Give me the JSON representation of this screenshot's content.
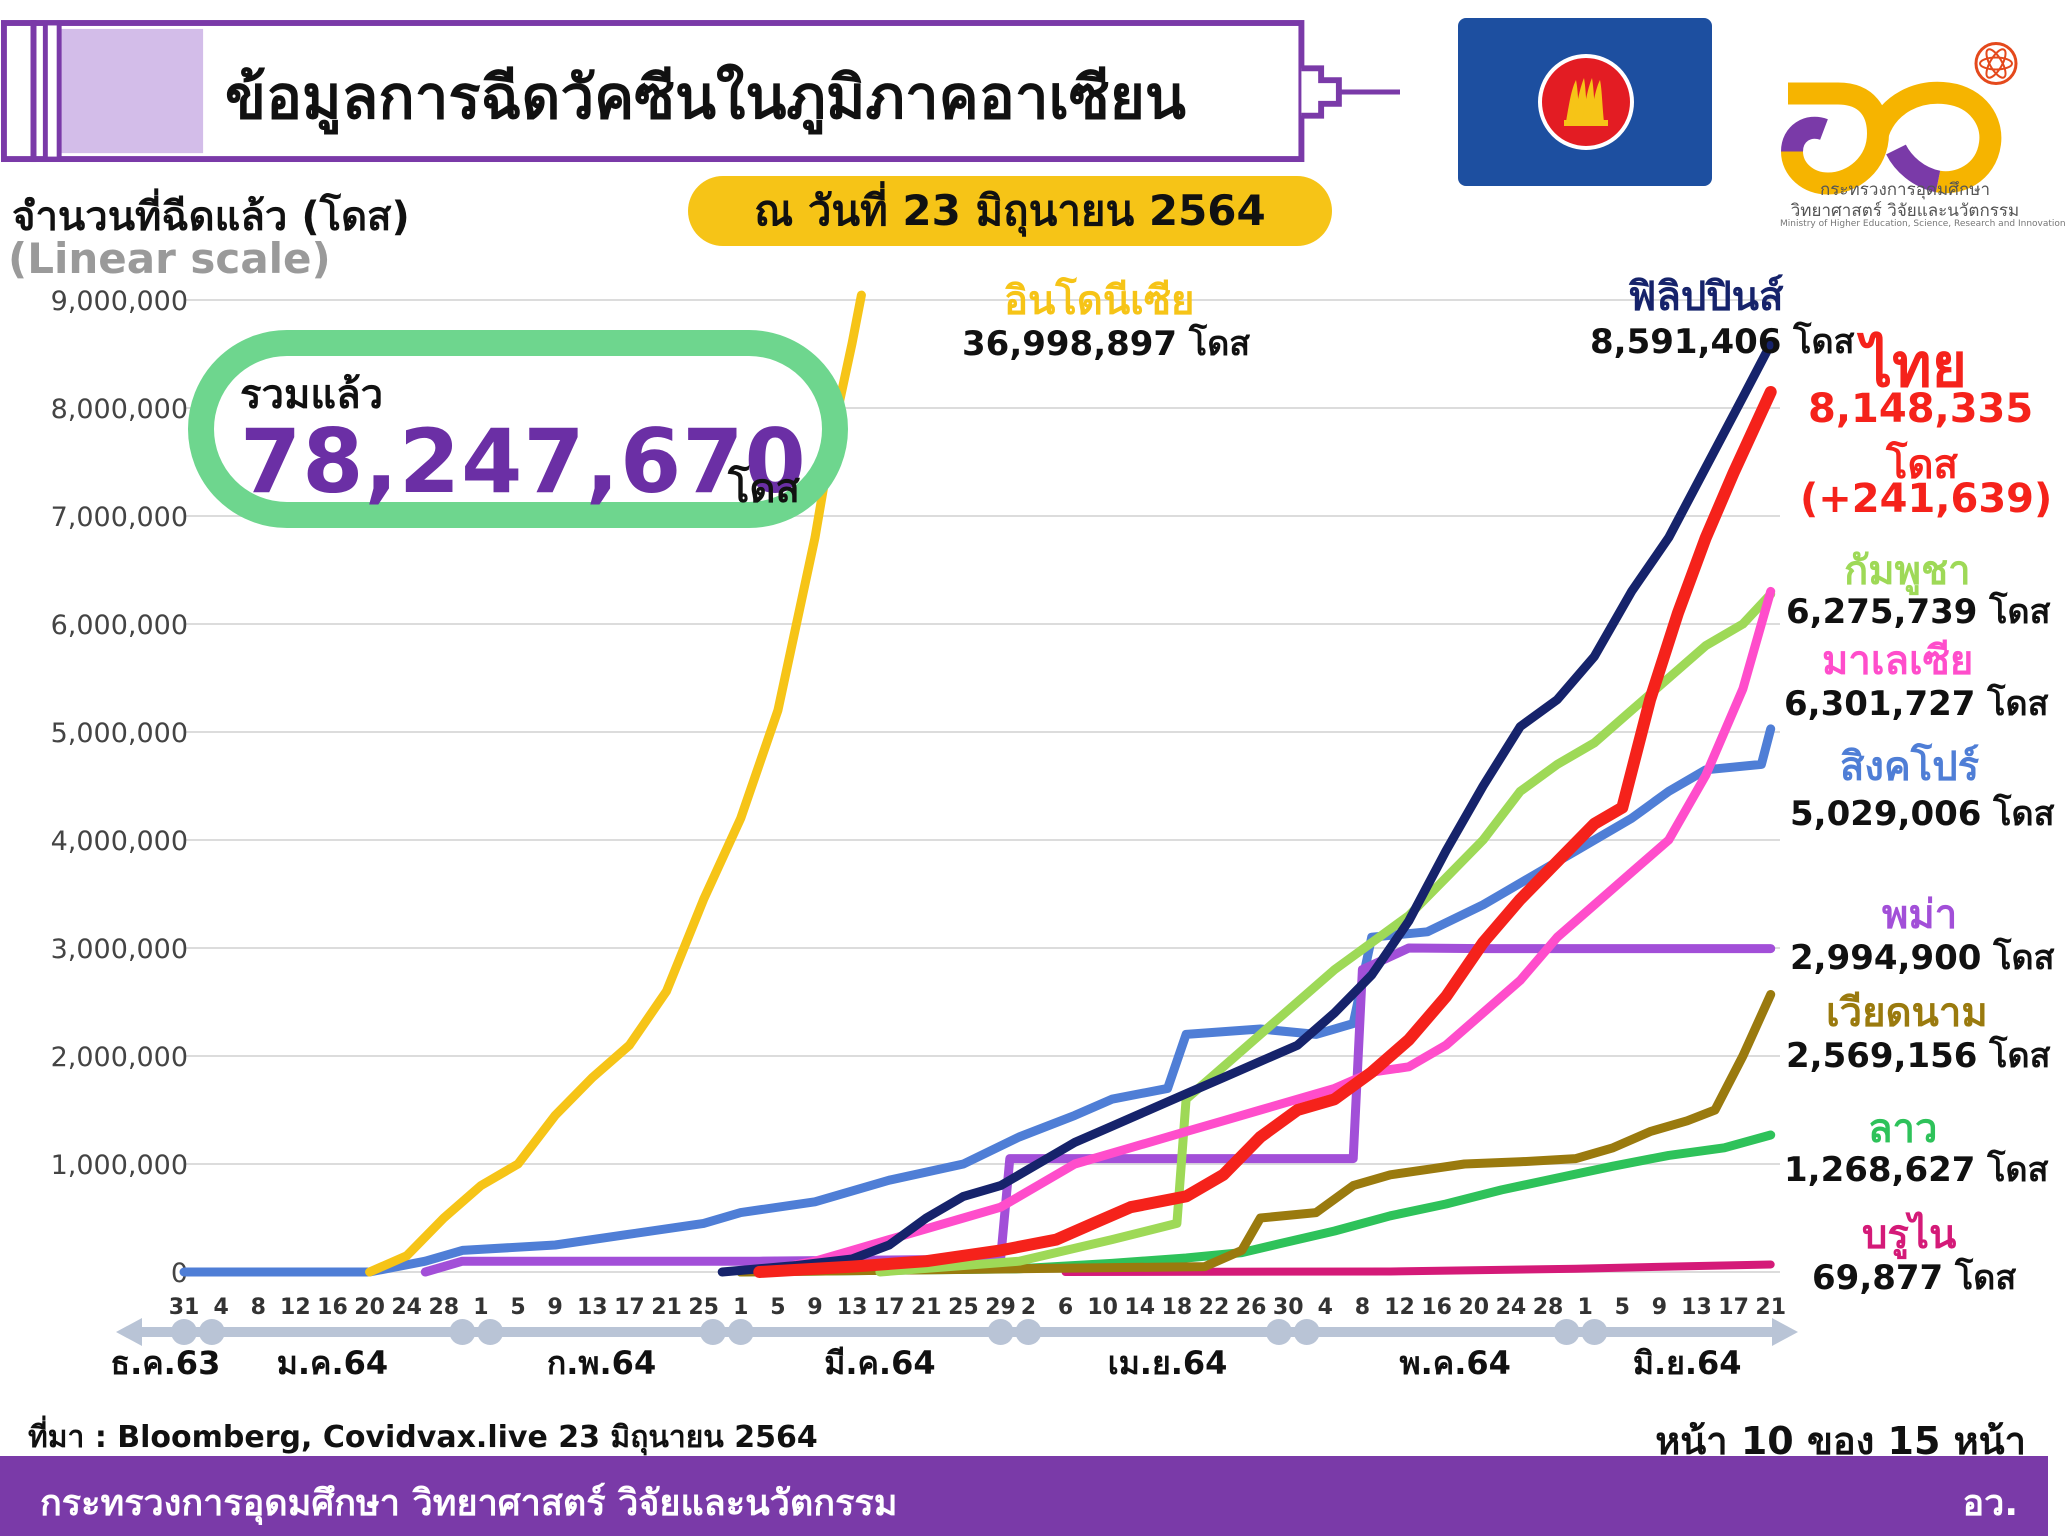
{
  "header": {
    "title": "ข้อมูลการฉีดวัคซีนในภูมิภาคอาเซียน",
    "date": "ณ วันที่ 23 มิถุนายน 2564",
    "ministry_th_1": "กระทรวงการอุดมศึกษา",
    "ministry_th_2": "วิทยาศาสตร์ วิจัยและนวัตกรรม",
    "ministry_en": "Ministry of Higher Education, Science, Research and Innovation"
  },
  "axis": {
    "ylabel": "จำนวนที่ฉีดแล้ว (โดส)",
    "scale_note": "(Linear scale)"
  },
  "total": {
    "label": "รวมแล้ว",
    "value": "78,247,670",
    "unit": "โดส"
  },
  "chart_data": {
    "type": "line",
    "ylim": [
      0,
      9000000
    ],
    "yticks": [
      "0",
      "1,000,000",
      "2,000,000",
      "3,000,000",
      "4,000,000",
      "5,000,000",
      "6,000,000",
      "7,000,000",
      "8,000,000",
      "9,000,000"
    ],
    "x_range_days": [
      0,
      172
    ],
    "x_ticks": [
      {
        "d": 0,
        "label": "31"
      },
      {
        "d": 4,
        "label": "4"
      },
      {
        "d": 8,
        "label": "8"
      },
      {
        "d": 12,
        "label": "12"
      },
      {
        "d": 16,
        "label": "16"
      },
      {
        "d": 20,
        "label": "20"
      },
      {
        "d": 24,
        "label": "24"
      },
      {
        "d": 28,
        "label": "28"
      },
      {
        "d": 32,
        "label": "1"
      },
      {
        "d": 36,
        "label": "5"
      },
      {
        "d": 40,
        "label": "9"
      },
      {
        "d": 44,
        "label": "13"
      },
      {
        "d": 48,
        "label": "17"
      },
      {
        "d": 52,
        "label": "21"
      },
      {
        "d": 56,
        "label": "25"
      },
      {
        "d": 60,
        "label": "1"
      },
      {
        "d": 64,
        "label": "5"
      },
      {
        "d": 68,
        "label": "9"
      },
      {
        "d": 72,
        "label": "13"
      },
      {
        "d": 76,
        "label": "17"
      },
      {
        "d": 80,
        "label": "21"
      },
      {
        "d": 84,
        "label": "25"
      },
      {
        "d": 88,
        "label": "29"
      },
      {
        "d": 91,
        "label": "2"
      },
      {
        "d": 95,
        "label": "6"
      },
      {
        "d": 99,
        "label": "10"
      },
      {
        "d": 103,
        "label": "14"
      },
      {
        "d": 107,
        "label": "18"
      },
      {
        "d": 111,
        "label": "22"
      },
      {
        "d": 115,
        "label": "26"
      },
      {
        "d": 119,
        "label": "30"
      },
      {
        "d": 123,
        "label": "4"
      },
      {
        "d": 127,
        "label": "8"
      },
      {
        "d": 131,
        "label": "12"
      },
      {
        "d": 135,
        "label": "16"
      },
      {
        "d": 139,
        "label": "20"
      },
      {
        "d": 143,
        "label": "24"
      },
      {
        "d": 147,
        "label": "28"
      },
      {
        "d": 151,
        "label": "1"
      },
      {
        "d": 155,
        "label": "5"
      },
      {
        "d": 159,
        "label": "9"
      },
      {
        "d": 163,
        "label": "13"
      },
      {
        "d": 167,
        "label": "17"
      },
      {
        "d": 171,
        "label": "21"
      }
    ],
    "months": [
      {
        "label": "ธ.ค.63",
        "d": -2
      },
      {
        "label": "ม.ค.64",
        "d": 16
      },
      {
        "label": "ก.พ.64",
        "d": 45
      },
      {
        "label": "มี.ค.64",
        "d": 75
      },
      {
        "label": "เม.ย.64",
        "d": 106
      },
      {
        "label": "พ.ค.64",
        "d": 137
      },
      {
        "label": "มิ.ย.64",
        "d": 162
      }
    ],
    "month_markers": [
      0,
      3,
      30,
      33,
      57,
      60,
      88,
      91,
      118,
      121,
      149,
      152
    ],
    "series": [
      {
        "name": "อินโดนีเซีย",
        "value": "36,998,897 โดส",
        "color": "#f6c417",
        "width": 9,
        "points": [
          [
            20,
            0
          ],
          [
            24,
            150000
          ],
          [
            28,
            500000
          ],
          [
            32,
            800000
          ],
          [
            36,
            1000000
          ],
          [
            40,
            1450000
          ],
          [
            44,
            1800000
          ],
          [
            48,
            2100000
          ],
          [
            52,
            2600000
          ],
          [
            56,
            3450000
          ],
          [
            60,
            4200000
          ],
          [
            64,
            5200000
          ],
          [
            68,
            6800000
          ],
          [
            70,
            7800000
          ],
          [
            72,
            8600000
          ],
          [
            73,
            9050000
          ]
        ]
      },
      {
        "name": "ฟิลิปปินส์",
        "value": "8,591,406 โดส",
        "color": "#16236b",
        "width": 9,
        "points": [
          [
            58,
            0
          ],
          [
            66,
            60000
          ],
          [
            72,
            120000
          ],
          [
            76,
            250000
          ],
          [
            80,
            500000
          ],
          [
            84,
            700000
          ],
          [
            88,
            800000
          ],
          [
            92,
            1000000
          ],
          [
            96,
            1200000
          ],
          [
            100,
            1350000
          ],
          [
            104,
            1500000
          ],
          [
            108,
            1650000
          ],
          [
            112,
            1800000
          ],
          [
            116,
            1950000
          ],
          [
            120,
            2100000
          ],
          [
            124,
            2400000
          ],
          [
            128,
            2750000
          ],
          [
            132,
            3250000
          ],
          [
            136,
            3900000
          ],
          [
            140,
            4500000
          ],
          [
            144,
            5050000
          ],
          [
            148,
            5300000
          ],
          [
            152,
            5700000
          ],
          [
            156,
            6300000
          ],
          [
            160,
            6800000
          ],
          [
            164,
            7450000
          ],
          [
            168,
            8100000
          ],
          [
            171,
            8591406
          ]
        ]
      },
      {
        "name": "ไทย",
        "value": "8,148,335",
        "value2": "โดส",
        "value3": "(+241,639)",
        "color": "#f5221b",
        "width": 12,
        "points": [
          [
            62,
            0
          ],
          [
            72,
            50000
          ],
          [
            80,
            100000
          ],
          [
            88,
            200000
          ],
          [
            94,
            300000
          ],
          [
            98,
            450000
          ],
          [
            102,
            600000
          ],
          [
            108,
            700000
          ],
          [
            112,
            900000
          ],
          [
            116,
            1250000
          ],
          [
            120,
            1500000
          ],
          [
            124,
            1600000
          ],
          [
            128,
            1850000
          ],
          [
            132,
            2150000
          ],
          [
            136,
            2550000
          ],
          [
            140,
            3050000
          ],
          [
            144,
            3450000
          ],
          [
            148,
            3800000
          ],
          [
            152,
            4150000
          ],
          [
            155,
            4300000
          ],
          [
            158,
            5300000
          ],
          [
            161,
            6100000
          ],
          [
            164,
            6800000
          ],
          [
            167,
            7400000
          ],
          [
            171,
            8148335
          ]
        ]
      },
      {
        "name": "กัมพูชา",
        "value": "6,275,739 โดส",
        "color": "#9ed957",
        "width": 9,
        "points": [
          [
            75,
            0
          ],
          [
            90,
            100000
          ],
          [
            100,
            300000
          ],
          [
            107,
            450000
          ],
          [
            108,
            1600000
          ],
          [
            112,
            1900000
          ],
          [
            116,
            2200000
          ],
          [
            120,
            2500000
          ],
          [
            124,
            2800000
          ],
          [
            128,
            3050000
          ],
          [
            132,
            3300000
          ],
          [
            136,
            3650000
          ],
          [
            140,
            4000000
          ],
          [
            144,
            4450000
          ],
          [
            148,
            4700000
          ],
          [
            152,
            4900000
          ],
          [
            156,
            5200000
          ],
          [
            160,
            5500000
          ],
          [
            164,
            5800000
          ],
          [
            168,
            6000000
          ],
          [
            171,
            6275739
          ]
        ]
      },
      {
        "name": "มาเลเซีย",
        "value": "6,301,727 โดส",
        "color": "#ff4dcb",
        "width": 9,
        "points": [
          [
            62,
            0
          ],
          [
            68,
            100000
          ],
          [
            72,
            200000
          ],
          [
            76,
            300000
          ],
          [
            80,
            400000
          ],
          [
            84,
            500000
          ],
          [
            88,
            600000
          ],
          [
            92,
            800000
          ],
          [
            96,
            1000000
          ],
          [
            100,
            1100000
          ],
          [
            104,
            1200000
          ],
          [
            108,
            1300000
          ],
          [
            112,
            1400000
          ],
          [
            116,
            1500000
          ],
          [
            120,
            1600000
          ],
          [
            124,
            1700000
          ],
          [
            128,
            1850000
          ],
          [
            132,
            1900000
          ],
          [
            136,
            2100000
          ],
          [
            140,
            2400000
          ],
          [
            144,
            2700000
          ],
          [
            148,
            3100000
          ],
          [
            152,
            3400000
          ],
          [
            156,
            3700000
          ],
          [
            160,
            4000000
          ],
          [
            164,
            4600000
          ],
          [
            168,
            5400000
          ],
          [
            171,
            6301727
          ]
        ]
      },
      {
        "name": "สิงคโปร์",
        "value": "5,029,006 โดส",
        "color": "#4f7ed6",
        "width": 9,
        "points": [
          [
            0,
            0
          ],
          [
            20,
            0
          ],
          [
            26,
            100000
          ],
          [
            30,
            200000
          ],
          [
            40,
            250000
          ],
          [
            48,
            350000
          ],
          [
            56,
            450000
          ],
          [
            60,
            550000
          ],
          [
            68,
            650000
          ],
          [
            76,
            850000
          ],
          [
            84,
            1000000
          ],
          [
            90,
            1250000
          ],
          [
            96,
            1450000
          ],
          [
            100,
            1600000
          ],
          [
            106,
            1700000
          ],
          [
            108,
            2200000
          ],
          [
            116,
            2250000
          ],
          [
            122,
            2200000
          ],
          [
            126,
            2300000
          ],
          [
            128,
            3100000
          ],
          [
            134,
            3150000
          ],
          [
            140,
            3400000
          ],
          [
            146,
            3700000
          ],
          [
            150,
            3900000
          ],
          [
            156,
            4200000
          ],
          [
            160,
            4450000
          ],
          [
            164,
            4650000
          ],
          [
            170,
            4700000
          ],
          [
            171,
            5029006
          ]
        ]
      },
      {
        "name": "พม่า",
        "value": "2,994,900 โดส",
        "color": "#a24fd8",
        "width": 9,
        "points": [
          [
            26,
            0
          ],
          [
            30,
            100000
          ],
          [
            40,
            100000
          ],
          [
            52,
            100000
          ],
          [
            62,
            100000
          ],
          [
            88,
            120000
          ],
          [
            89,
            1050000
          ],
          [
            100,
            1050000
          ],
          [
            112,
            1050000
          ],
          [
            126,
            1050000
          ],
          [
            127,
            2800000
          ],
          [
            132,
            3000000
          ],
          [
            140,
            2994900
          ],
          [
            171,
            2994900
          ]
        ]
      },
      {
        "name": "เวียดนาม",
        "value": "2,569,156 โดส",
        "color": "#9a7a0e",
        "width": 9,
        "points": [
          [
            60,
            0
          ],
          [
            110,
            50000
          ],
          [
            114,
            200000
          ],
          [
            116,
            500000
          ],
          [
            122,
            550000
          ],
          [
            126,
            800000
          ],
          [
            130,
            900000
          ],
          [
            134,
            950000
          ],
          [
            138,
            1000000
          ],
          [
            144,
            1020000
          ],
          [
            150,
            1050000
          ],
          [
            154,
            1150000
          ],
          [
            158,
            1300000
          ],
          [
            162,
            1400000
          ],
          [
            165,
            1500000
          ],
          [
            168,
            2000000
          ],
          [
            171,
            2569156
          ]
        ]
      },
      {
        "name": "ลาว",
        "value": "1,268,627 โดส",
        "color": "#2ec25a",
        "width": 9,
        "points": [
          [
            60,
            0
          ],
          [
            90,
            30000
          ],
          [
            100,
            80000
          ],
          [
            108,
            130000
          ],
          [
            114,
            180000
          ],
          [
            118,
            260000
          ],
          [
            124,
            380000
          ],
          [
            130,
            520000
          ],
          [
            136,
            630000
          ],
          [
            142,
            760000
          ],
          [
            148,
            870000
          ],
          [
            154,
            980000
          ],
          [
            160,
            1080000
          ],
          [
            166,
            1150000
          ],
          [
            171,
            1268627
          ]
        ]
      },
      {
        "name": "บรูไน",
        "value": "69,877 โดส",
        "color": "#d41a78",
        "width": 8,
        "points": [
          [
            95,
            0
          ],
          [
            130,
            5000
          ],
          [
            150,
            30000
          ],
          [
            160,
            50000
          ],
          [
            171,
            69877
          ]
        ]
      }
    ]
  },
  "footer": {
    "source": "ที่มา : Bloomberg, Covidvax.live 23 มิถุนายน 2564",
    "page": "หน้า 10 ของ 15 หน้า",
    "org": "กระทรวงการอุดมศึกษา วิทยาศาสตร์ วิจัยและนวัตกรรม",
    "org_short": "อว."
  }
}
